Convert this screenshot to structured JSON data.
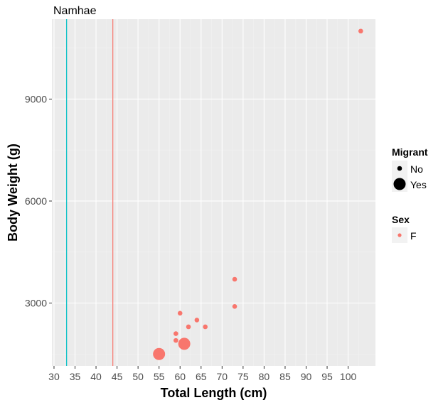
{
  "chart_data": {
    "type": "scatter",
    "title": "Namhae",
    "xlabel": "Total Length (cm)",
    "ylabel": "Body Weight (g)",
    "xlim": [
      29.5,
      106.5
    ],
    "ylim": [
      1150,
      11350
    ],
    "x_ticks": [
      30,
      35,
      40,
      45,
      50,
      55,
      60,
      65,
      70,
      75,
      80,
      85,
      90,
      95,
      100
    ],
    "y_ticks": [
      3000,
      6000,
      9000
    ],
    "grid": true,
    "vlines": [
      {
        "x": 33,
        "color": "#00BFC4"
      },
      {
        "x": 44,
        "color": "#F8766D"
      }
    ],
    "series": [
      {
        "name": "F",
        "color": "#F8766D",
        "points": [
          {
            "x": 103,
            "y": 11000,
            "migrant": "No"
          },
          {
            "x": 73,
            "y": 3700,
            "migrant": "No"
          },
          {
            "x": 73,
            "y": 2900,
            "migrant": "No"
          },
          {
            "x": 60,
            "y": 2700,
            "migrant": "No"
          },
          {
            "x": 64,
            "y": 2500,
            "migrant": "No"
          },
          {
            "x": 62,
            "y": 2300,
            "migrant": "No"
          },
          {
            "x": 66,
            "y": 2300,
            "migrant": "No"
          },
          {
            "x": 59,
            "y": 2100,
            "migrant": "No"
          },
          {
            "x": 59,
            "y": 1900,
            "migrant": "No"
          },
          {
            "x": 61,
            "y": 1800,
            "migrant": "Yes"
          },
          {
            "x": 55,
            "y": 1500,
            "migrant": "Yes"
          }
        ]
      }
    ],
    "legend": {
      "placement": "right",
      "size_title": "Migrant",
      "size_items": [
        "No",
        "Yes"
      ],
      "color_title": "Sex",
      "color_items": [
        {
          "label": "F",
          "color": "#F8766D"
        }
      ]
    }
  }
}
